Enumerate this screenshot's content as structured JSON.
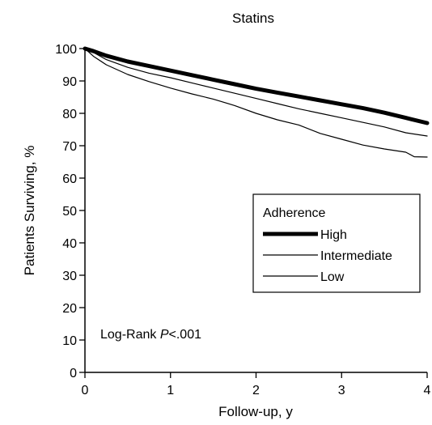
{
  "chart_data": {
    "type": "line",
    "title": "Statins",
    "xlabel": "Follow-up, y",
    "ylabel": "Patients Surviving, %",
    "xlim": [
      0,
      4
    ],
    "ylim": [
      0,
      100
    ],
    "x_ticks": [
      "0",
      "1",
      "2",
      "3",
      "4"
    ],
    "y_ticks": [
      "0",
      "10",
      "20",
      "30",
      "40",
      "50",
      "60",
      "70",
      "80",
      "90",
      "100"
    ],
    "grid": false,
    "legend": {
      "title": "Adherence",
      "placement": "center-right"
    },
    "annotation": {
      "prefix": "Log-Rank ",
      "italic": "P",
      "suffix": "<.001"
    },
    "series": [
      {
        "name": "High",
        "color": "#000000",
        "weight": "heavy",
        "x": [
          0,
          0.1,
          0.25,
          0.5,
          0.75,
          1.0,
          1.25,
          1.5,
          1.75,
          2.0,
          2.25,
          2.5,
          2.75,
          3.0,
          3.25,
          3.5,
          3.75,
          4.0
        ],
        "y": [
          100,
          99.2,
          97.8,
          96.0,
          94.6,
          93.2,
          91.8,
          90.4,
          89.0,
          87.6,
          86.4,
          85.2,
          84.0,
          82.8,
          81.6,
          80.2,
          78.6,
          77.0
        ]
      },
      {
        "name": "Intermediate",
        "color": "#000000",
        "weight": "thin",
        "x": [
          0,
          0.1,
          0.25,
          0.5,
          0.75,
          1.0,
          1.25,
          1.5,
          1.75,
          2.0,
          2.25,
          2.5,
          2.75,
          3.0,
          3.25,
          3.5,
          3.75,
          4.0
        ],
        "y": [
          100,
          98.8,
          96.6,
          94.2,
          92.4,
          91.0,
          89.4,
          87.8,
          86.2,
          84.6,
          83.0,
          81.4,
          80.0,
          78.6,
          77.2,
          75.8,
          74.0,
          73.0
        ]
      },
      {
        "name": "Low",
        "color": "#000000",
        "weight": "thin",
        "x": [
          0,
          0.1,
          0.25,
          0.5,
          0.75,
          1.0,
          1.25,
          1.5,
          1.75,
          2.0,
          2.25,
          2.5,
          2.75,
          3.0,
          3.25,
          3.5,
          3.75,
          3.85,
          4.0
        ],
        "y": [
          100,
          97.6,
          95.0,
          92.0,
          89.8,
          87.8,
          86.0,
          84.4,
          82.4,
          80.0,
          78.0,
          76.4,
          73.8,
          72.0,
          70.2,
          69.0,
          68.0,
          66.6,
          66.5
        ]
      }
    ]
  }
}
